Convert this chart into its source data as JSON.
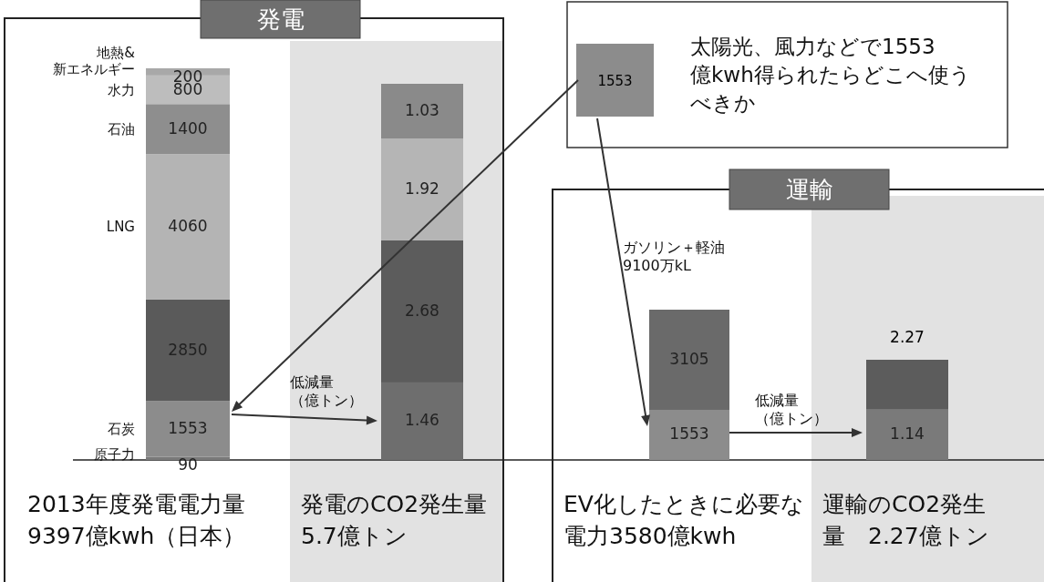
{
  "chart_data": [
    {
      "type": "other",
      "title": "発電"
    },
    {
      "type": "bar",
      "xlabel": "2013年度発電電力量9397億kwh（日本）",
      "categories": [
        null
      ],
      "stacked": true,
      "data_labels": true,
      "series": [
        {
          "name": "原子力",
          "color": "#7a7a7a",
          "values": [
            90
          ]
        },
        {
          "name": "石炭",
          "color": "#8c8c8c",
          "values": [
            1553
          ]
        },
        {
          "color": "#5a5a5a",
          "values": [
            2850
          ]
        },
        {
          "name": "LNG",
          "color": "#b4b4b4",
          "values": [
            4060
          ]
        },
        {
          "name": "石油",
          "color": "#8e8e8e",
          "values": [
            1400
          ]
        },
        {
          "name": "水力",
          "color": "#bdbdbd",
          "values": [
            800
          ]
        },
        {
          "name": "地熱&新エネルギー",
          "color": "#a8a8a8",
          "values": [
            200
          ]
        }
      ]
    },
    {
      "type": "bar",
      "xlabel": "発電のCO2発生量5.7億トン",
      "annotations": [
        "低減量（億トン）"
      ],
      "categories": [
        null
      ],
      "stacked": true,
      "data_labels": true,
      "series": [
        {
          "color": "#6e6e6e",
          "values": [
            1.46
          ]
        },
        {
          "color": "#5c5c5c",
          "values": [
            2.68
          ]
        },
        {
          "color": "#b5b5b5",
          "values": [
            1.92
          ]
        },
        {
          "color": "#8a8a8a",
          "values": [
            1.03
          ]
        }
      ]
    },
    {
      "type": "other",
      "annotations": [
        "1553",
        "太陽光、風力などで1553億kwh得られたらどこへ使うべきか"
      ]
    },
    {
      "type": "other",
      "title": "運輸"
    },
    {
      "type": "bar",
      "xlabel": "EV化したときに必要な電力3580億kwh",
      "annotations": [
        "ガソリン＋軽油9100万kL"
      ],
      "categories": [
        null
      ],
      "stacked": true,
      "data_labels": true,
      "series": [
        {
          "color": "#8c8c8c",
          "values": [
            1553
          ]
        },
        {
          "color": "#6a6a6a",
          "values": [
            3105
          ]
        }
      ]
    },
    {
      "type": "bar",
      "xlabel": "運輸のCO2発生量　2.27億トン",
      "annotations": [
        "低減量（億トン）"
      ],
      "categories": [
        null
      ],
      "stacked": true,
      "totals": [
        "2.27"
      ],
      "series": [
        {
          "color": "#7a7a7a",
          "values": [
            1.14
          ],
          "value_labels": [
            "1.14"
          ]
        },
        {
          "color": "#5c5c5c",
          "values": [
            1.13
          ],
          "value_labels": [
            null
          ]
        }
      ]
    }
  ]
}
